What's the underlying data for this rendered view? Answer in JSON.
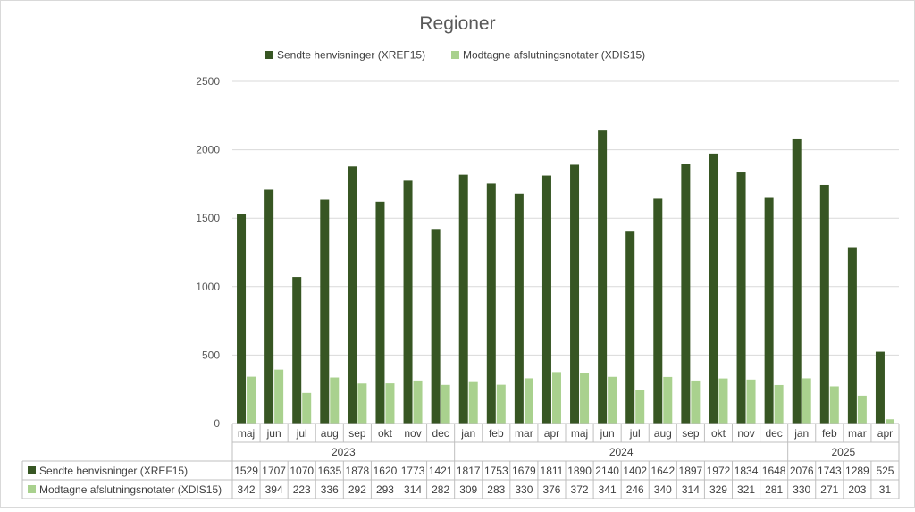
{
  "chart_data": {
    "type": "bar",
    "title": "Regioner",
    "legend_position": "top",
    "grid": true,
    "ylim": [
      0,
      2500
    ],
    "yticks": [
      0,
      500,
      1000,
      1500,
      2000,
      2500
    ],
    "categories": [
      "maj",
      "jun",
      "jul",
      "aug",
      "sep",
      "okt",
      "nov",
      "dec",
      "jan",
      "feb",
      "mar",
      "apr",
      "maj",
      "jun",
      "jul",
      "aug",
      "sep",
      "okt",
      "nov",
      "dec",
      "jan",
      "feb",
      "mar",
      "apr"
    ],
    "year_groups": [
      {
        "label": "2023",
        "start": 0,
        "count": 8
      },
      {
        "label": "2024",
        "start": 8,
        "count": 12
      },
      {
        "label": "2025",
        "start": 20,
        "count": 4
      }
    ],
    "series": [
      {
        "name": "Sendte henvisninger (XREF15)",
        "color": "#375623",
        "values": [
          1529,
          1707,
          1070,
          1635,
          1878,
          1620,
          1773,
          1421,
          1817,
          1753,
          1679,
          1811,
          1890,
          2140,
          1402,
          1642,
          1897,
          1972,
          1834,
          1648,
          2076,
          1743,
          1289,
          525
        ]
      },
      {
        "name": "Modtagne afslutningsnotater (XDIS15)",
        "color": "#a9d18e",
        "values": [
          342,
          394,
          223,
          336,
          292,
          293,
          314,
          282,
          309,
          283,
          330,
          376,
          372,
          341,
          246,
          340,
          314,
          329,
          321,
          281,
          330,
          271,
          203,
          31
        ]
      }
    ]
  }
}
